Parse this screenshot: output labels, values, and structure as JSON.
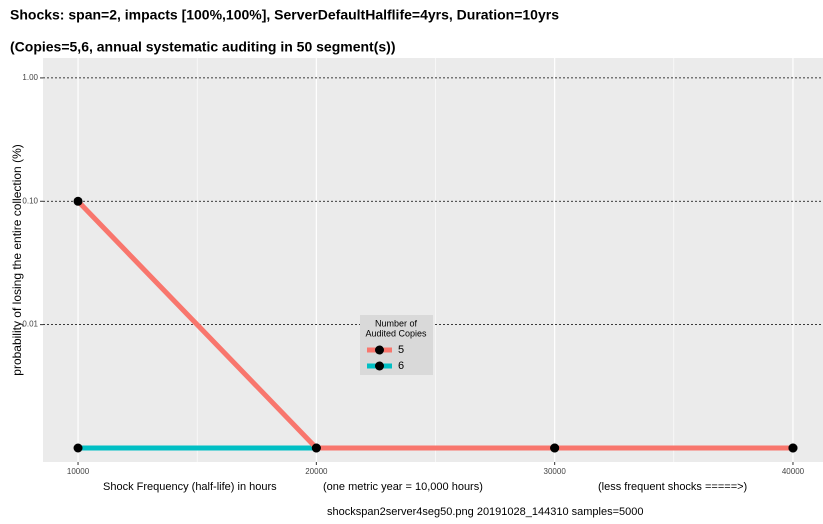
{
  "chart_data": {
    "type": "line",
    "title": "Shocks: span=2, impacts [100%,100%], ServerDefaultHalflife=4yrs, Duration=10yrs",
    "subtitle": "(Copies=5,6, annual systematic auditing in 50 segment(s))",
    "y_label": "probability of losing the entire collection (%)",
    "x_labels": [
      "Shock Frequency (half-life) in hours",
      "(one metric year = 10,000 hours)",
      "(less frequent shocks =====>)"
    ],
    "footer": "shockspan2server4seg50.png   20191028_144310   samples=5000",
    "legend_title": [
      "Number of",
      "Audited Copies"
    ],
    "x": [
      10000,
      20000,
      30000,
      40000
    ],
    "series": [
      {
        "name": "5",
        "color": "#F8766D",
        "values": [
          0.1,
          0.001,
          0.001,
          0.001
        ]
      },
      {
        "name": "6",
        "color": "#00BFC4",
        "values": [
          0.001,
          0.001,
          0.001,
          0.001
        ]
      }
    ],
    "xlim": [
      8530,
      41260
    ],
    "xticks": [
      10000,
      20000,
      30000,
      40000
    ],
    "ylim": [
      0.00077,
      1.45
    ],
    "log_y": true,
    "yticks": [
      {
        "value": 1,
        "label": "1.00"
      },
      {
        "value": 0.1,
        "label": "0.10"
      },
      {
        "value": 0.01,
        "label": "0.01"
      }
    ],
    "grid": true
  }
}
